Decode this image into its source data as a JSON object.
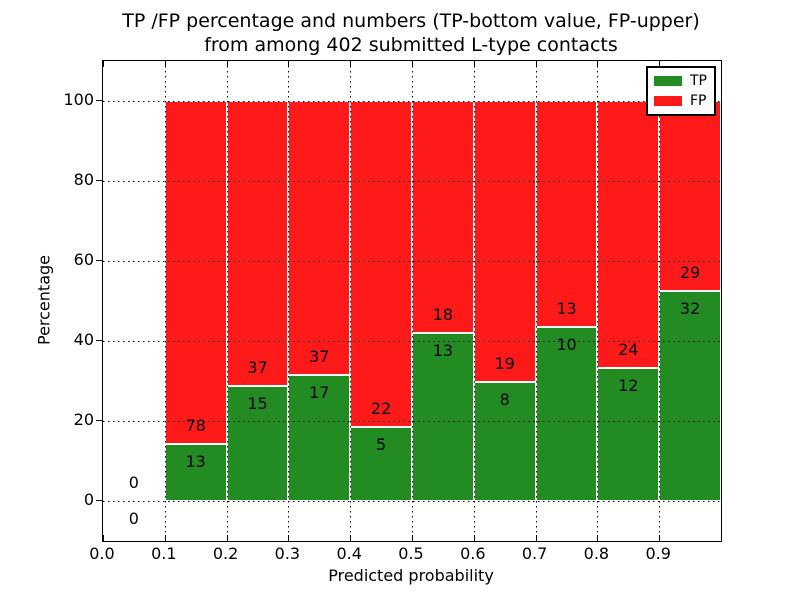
{
  "chart_data": {
    "type": "bar",
    "stacked": true,
    "normalized_to_percent": true,
    "title_line1": "TP /FP percentage and numbers (TP-bottom value, FP-upper)",
    "title_line2": "from among 402 submitted L-type contacts",
    "xlabel": "Predicted probability",
    "ylabel": "Percentage",
    "total_contacts": 402,
    "xlim": [
      0.0,
      1.0
    ],
    "ylim": [
      -10,
      110
    ],
    "grid": "dotted",
    "x_tick_labels": [
      "0.0",
      "0.1",
      "0.2",
      "0.3",
      "0.4",
      "0.5",
      "0.6",
      "0.7",
      "0.8",
      "0.9"
    ],
    "y_tick_values": [
      0,
      20,
      40,
      60,
      80,
      100
    ],
    "y_tick_labels": [
      "0",
      "20",
      "40",
      "60",
      "80",
      "100"
    ],
    "categories": [
      "0.0-0.1",
      "0.1-0.2",
      "0.2-0.3",
      "0.3-0.4",
      "0.4-0.5",
      "0.5-0.6",
      "0.6-0.7",
      "0.7-0.8",
      "0.8-0.9",
      "0.9-1.0"
    ],
    "bin_edges": [
      0.0,
      0.1,
      0.2,
      0.3,
      0.4,
      0.5,
      0.6,
      0.7,
      0.8,
      0.9,
      1.0
    ],
    "series": [
      {
        "name": "TP",
        "color": "#228B22",
        "counts": [
          0,
          13,
          15,
          17,
          5,
          13,
          8,
          10,
          12,
          32
        ]
      },
      {
        "name": "FP",
        "color": "#FF1A1A",
        "counts": [
          0,
          78,
          37,
          37,
          22,
          18,
          19,
          13,
          24,
          29
        ]
      }
    ],
    "legend": {
      "position": "upper right",
      "entries": [
        {
          "label": "TP",
          "color": "#228B22"
        },
        {
          "label": "FP",
          "color": "#FF1A1A"
        }
      ]
    }
  }
}
